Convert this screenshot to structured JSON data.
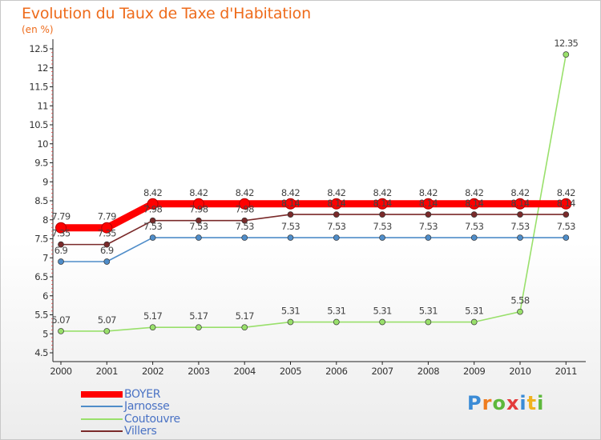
{
  "chart_data": {
    "type": "line",
    "title": "Evolution du Taux de Taxe d'Habitation",
    "unit": "(en %)",
    "x": [
      "2000",
      "2001",
      "2002",
      "2003",
      "2004",
      "2005",
      "2006",
      "2007",
      "2008",
      "2009",
      "2010",
      "2011"
    ],
    "ylim": [
      4.5,
      12.5
    ],
    "yticks": [
      "4.5",
      "5",
      "5.5",
      "6",
      "6.5",
      "7",
      "7.5",
      "8",
      "8.5",
      "9",
      "9.5",
      "10",
      "10.5",
      "11",
      "11.5",
      "12",
      "12.5"
    ],
    "grid": false,
    "legend_position": "bottom-left",
    "series": [
      {
        "name": "BOYER",
        "color": "#ff0000",
        "values": [
          7.79,
          7.79,
          8.42,
          8.42,
          8.42,
          8.42,
          8.42,
          8.42,
          8.42,
          8.42,
          8.42,
          8.42
        ],
        "labels": [
          "7.79",
          "7.79",
          "8.42",
          "8.42",
          "8.42",
          "8.42",
          "8.42",
          "8.42",
          "8.42",
          "8.42",
          "8.42",
          "8.42"
        ]
      },
      {
        "name": "Jarnosse",
        "color": "#4f8dc9",
        "values": [
          6.9,
          6.9,
          7.53,
          7.53,
          7.53,
          7.53,
          7.53,
          7.53,
          7.53,
          7.53,
          7.53,
          7.53
        ],
        "labels": [
          "6.9",
          "6.9",
          "7.53",
          "7.53",
          "7.53",
          "7.53",
          "7.53",
          "7.53",
          "7.53",
          "7.53",
          "7.53",
          "7.53"
        ]
      },
      {
        "name": "Coutouvre",
        "color": "#99e06b",
        "values": [
          5.07,
          5.07,
          5.17,
          5.17,
          5.17,
          5.31,
          5.31,
          5.31,
          5.31,
          5.31,
          5.58,
          12.35
        ],
        "labels": [
          "5.07",
          "5.07",
          "5.17",
          "5.17",
          "5.17",
          "5.31",
          "5.31",
          "5.31",
          "5.31",
          "5.31",
          "5.58",
          "12.35"
        ]
      },
      {
        "name": "Villers",
        "color": "#7a2a2a",
        "values": [
          7.35,
          7.35,
          7.98,
          7.98,
          7.98,
          8.14,
          8.14,
          8.14,
          8.14,
          8.14,
          8.14,
          8.14
        ],
        "labels": [
          "7.35",
          "7.35",
          "7.98",
          "7.98",
          "7.98",
          "8.14",
          "8.14",
          "8.14",
          "8.14",
          "8.14",
          "8.14",
          "8.14"
        ]
      }
    ]
  },
  "logo": {
    "letters": [
      "P",
      "r",
      "o",
      "x",
      "i",
      "t",
      "i"
    ]
  }
}
